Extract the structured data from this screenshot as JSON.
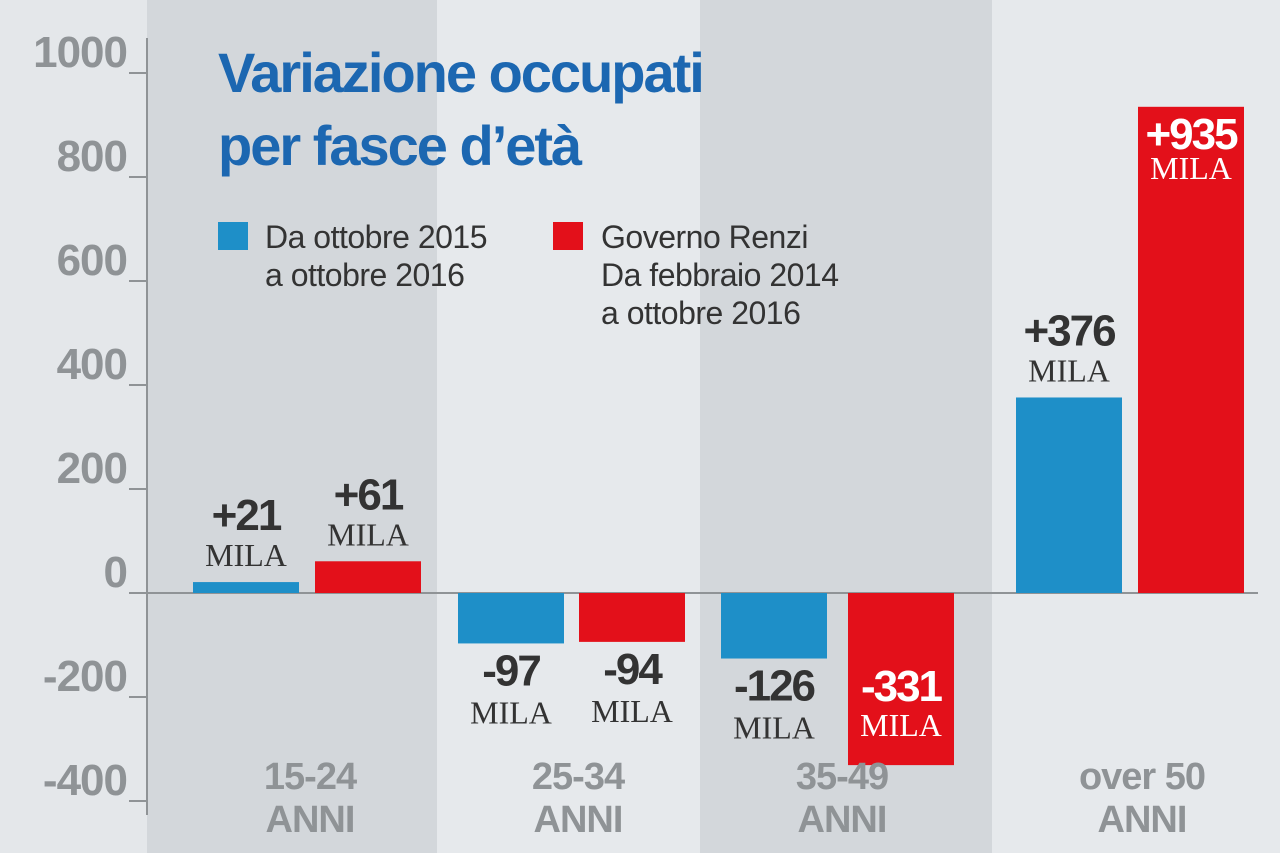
{
  "chart_data": {
    "type": "bar",
    "title": [
      "Variazione occupati",
      "per fasce d’età"
    ],
    "categories": [
      [
        "15-24",
        "ANNI"
      ],
      [
        "25-34",
        "ANNI"
      ],
      [
        "35-49",
        "ANNI"
      ],
      [
        "over 50",
        "ANNI"
      ]
    ],
    "series": [
      {
        "legend": [
          "Da ottobre 2015",
          "a ottobre 2016"
        ],
        "color": "#1e8fc8",
        "values": [
          21,
          -97,
          -126,
          376
        ],
        "labels": [
          "+21",
          "-97",
          "-126",
          "+376"
        ]
      },
      {
        "legend": [
          "Governo Renzi",
          "Da febbraio 2014",
          "a ottobre 2016"
        ],
        "color": "#e3101a",
        "values": [
          61,
          -94,
          -331,
          935
        ],
        "labels": [
          "+61",
          "-94",
          "-331",
          "+935"
        ]
      }
    ],
    "unit_label": "MILA",
    "yticks": [
      1000,
      800,
      600,
      400,
      200,
      0,
      -200,
      -400
    ],
    "ylim": [
      -400,
      1000
    ]
  }
}
